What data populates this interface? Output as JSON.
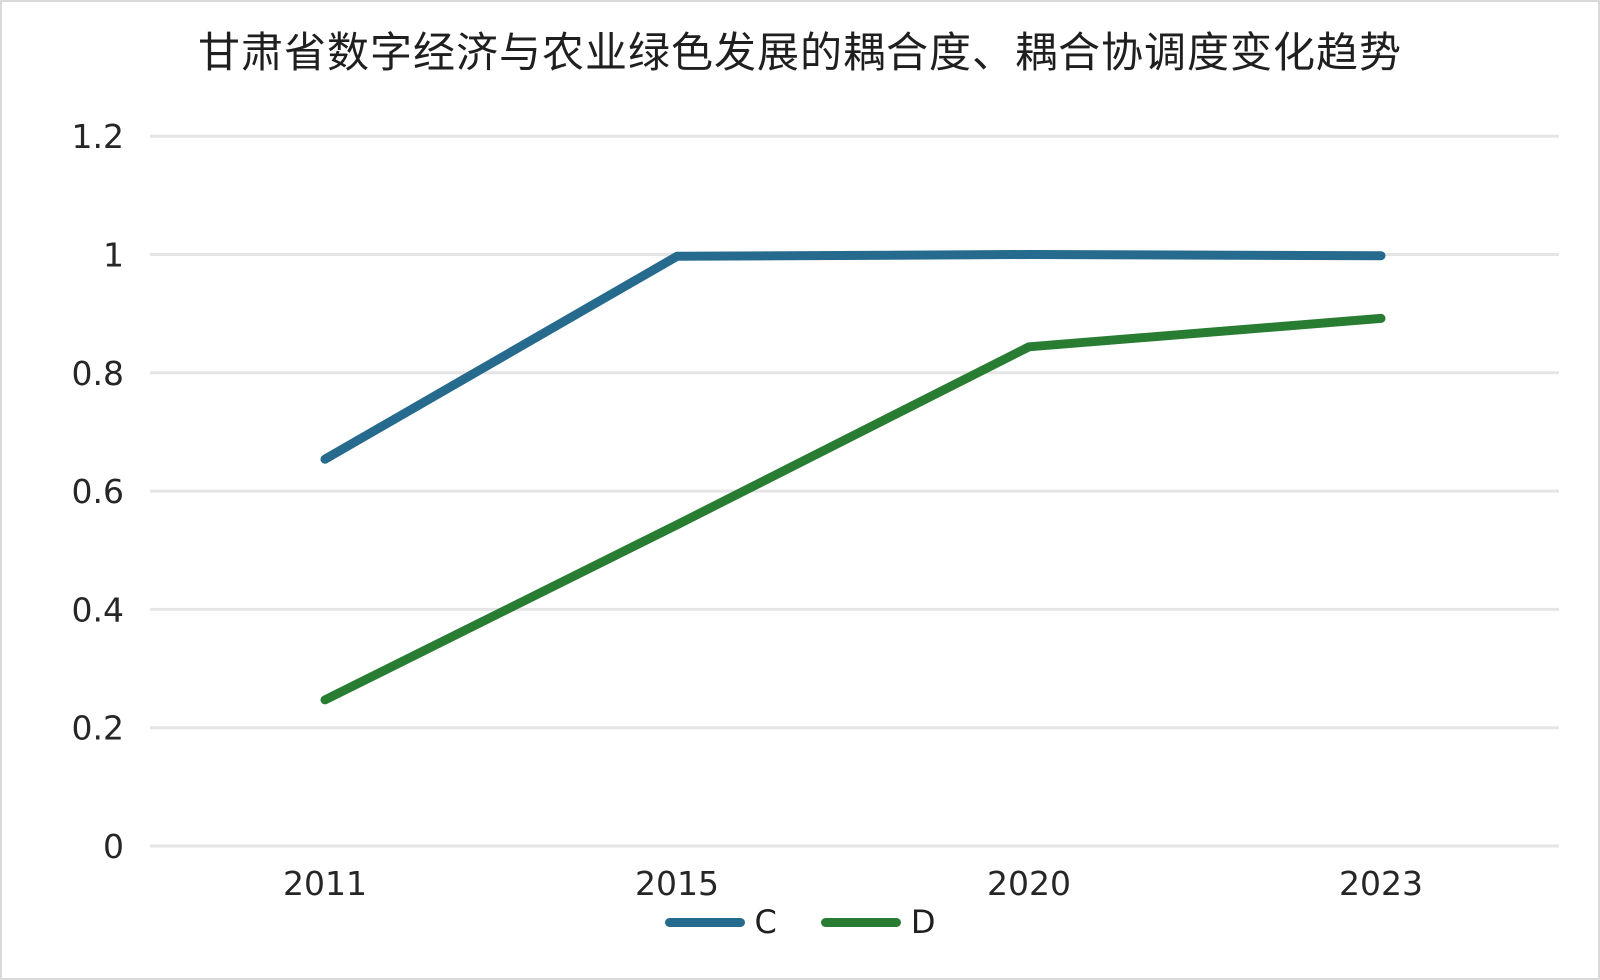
{
  "chart_data": {
    "type": "line",
    "title": "甘肃省数字经济与农业绿色发展的耦合度、耦合协调度变化趋势",
    "categories": [
      "2011",
      "2015",
      "2020",
      "2023"
    ],
    "series": [
      {
        "name": "C",
        "color": "#266b8d",
        "values": [
          0.654,
          0.997,
          1.0,
          0.998
        ]
      },
      {
        "name": "D",
        "color": "#287d33",
        "values": [
          0.247,
          0.543,
          0.844,
          0.892
        ]
      }
    ],
    "yticks": [
      0,
      0.2,
      0.4,
      0.6,
      0.8,
      1,
      1.2
    ],
    "ytick_labels": [
      "0",
      "0.2",
      "0.4",
      "0.6",
      "0.8",
      "1",
      "1.2"
    ],
    "ylim": [
      0,
      1.2
    ],
    "xlabel": "",
    "ylabel": "",
    "grid": "horizontal",
    "legend_position": "bottom",
    "gridline_color": "#e5e5e5",
    "tick_label_color": "#262626"
  }
}
